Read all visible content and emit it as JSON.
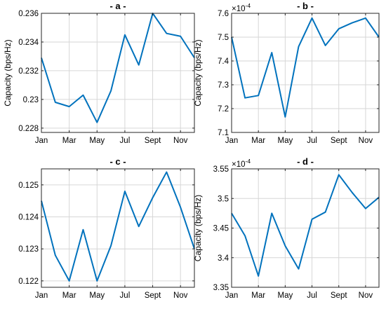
{
  "figure": {
    "color": "#0072BD"
  },
  "chart_data": [
    {
      "type": "line",
      "title": "- a -",
      "ylabel": "Capacity (bps/Hz)",
      "exponent": "",
      "x": [
        1,
        2,
        3,
        4,
        5,
        6,
        7,
        8,
        9,
        10,
        11,
        12
      ],
      "xticks": [
        "Jan",
        "Mar",
        "May",
        "Jul",
        "Sept",
        "Nov"
      ],
      "xtick_pos": [
        1,
        3,
        5,
        7,
        9,
        11
      ],
      "xlim": [
        1,
        12
      ],
      "ylim": [
        0.2277,
        0.236
      ],
      "yticks": [
        0.228,
        0.23,
        0.232,
        0.234,
        0.236
      ],
      "ytick_labels": [
        "0.228",
        "0.23",
        "0.232",
        "0.234",
        "0.236"
      ],
      "grid": true,
      "series": [
        {
          "values": [
            0.2329,
            0.2298,
            0.2295,
            0.2303,
            0.2284,
            0.2306,
            0.2345,
            0.2324,
            0.236,
            0.2346,
            0.2344,
            0.2329
          ]
        }
      ]
    },
    {
      "type": "line",
      "title": "- b -",
      "ylabel": "Capacity (bps/Hz)",
      "exponent": "-4",
      "x": [
        1,
        2,
        3,
        4,
        5,
        6,
        7,
        8,
        9,
        10,
        11,
        12
      ],
      "xticks": [
        "Jan",
        "Mar",
        "May",
        "Jul",
        "Sept",
        "Nov"
      ],
      "xtick_pos": [
        1,
        3,
        5,
        7,
        9,
        11
      ],
      "xlim": [
        1,
        12
      ],
      "ylim": [
        7.1,
        7.6
      ],
      "yticks": [
        7.1,
        7.2,
        7.3,
        7.4,
        7.5,
        7.6
      ],
      "ytick_labels": [
        "7.1",
        "7.2",
        "7.3",
        "7.4",
        "7.5",
        "7.6"
      ],
      "grid": true,
      "series": [
        {
          "values": [
            7.5,
            7.245,
            7.255,
            7.435,
            7.165,
            7.46,
            7.58,
            7.465,
            7.535,
            7.56,
            7.58,
            7.5
          ]
        }
      ]
    },
    {
      "type": "line",
      "title": "- c -",
      "ylabel": "",
      "exponent": "",
      "x": [
        1,
        2,
        3,
        4,
        5,
        6,
        7,
        8,
        9,
        10,
        11,
        12
      ],
      "xticks": [
        "Jan",
        "Mar",
        "May",
        "Jul",
        "Sept",
        "Nov"
      ],
      "xtick_pos": [
        1,
        3,
        5,
        7,
        9,
        11
      ],
      "xlim": [
        1,
        12
      ],
      "ylim": [
        0.1218,
        0.1255
      ],
      "yticks": [
        0.122,
        0.123,
        0.124,
        0.125
      ],
      "ytick_labels": [
        "0.122",
        "0.123",
        "0.124",
        "0.125"
      ],
      "grid": true,
      "series": [
        {
          "values": [
            0.1245,
            0.1228,
            0.122,
            0.1236,
            0.122,
            0.1231,
            0.1248,
            0.1237,
            0.1246,
            0.1254,
            0.1243,
            0.123
          ]
        }
      ]
    },
    {
      "type": "line",
      "title": "- d -",
      "ylabel": "Capacity (bps/Hz)",
      "exponent": "-4",
      "x": [
        1,
        2,
        3,
        4,
        5,
        6,
        7,
        8,
        9,
        10,
        11,
        12
      ],
      "xticks": [
        "Jan",
        "Mar",
        "May",
        "Jul",
        "Sept",
        "Nov"
      ],
      "xtick_pos": [
        1,
        3,
        5,
        7,
        9,
        11
      ],
      "xlim": [
        1,
        12
      ],
      "ylim": [
        3.35,
        3.55
      ],
      "yticks": [
        3.35,
        3.4,
        3.45,
        3.5,
        3.55
      ],
      "ytick_labels": [
        "3.35",
        "3.4",
        "3.45",
        "3.5",
        "3.55"
      ],
      "grid": true,
      "series": [
        {
          "values": [
            3.475,
            3.437,
            3.369,
            3.475,
            3.42,
            3.381,
            3.465,
            3.477,
            3.54,
            3.51,
            3.483,
            3.502
          ]
        }
      ]
    }
  ]
}
